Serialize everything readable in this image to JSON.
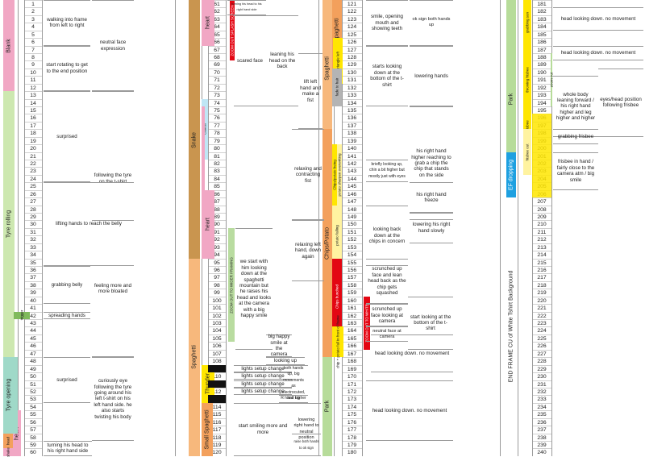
{
  "columns": [
    {
      "id": "c1",
      "start": 1,
      "end": 60
    },
    {
      "id": "c2",
      "start": 61,
      "end": 120
    },
    {
      "id": "c3",
      "start": 121,
      "end": 180
    },
    {
      "id": "c4",
      "start": 181,
      "end": 240
    }
  ],
  "scenes": {
    "blank": "Blank",
    "tyre_rolling": "Tyre rolling",
    "trigger": "trigger",
    "tyre_opening": "Tyre opening",
    "head": "head",
    "shake": "shake",
    "heart_a": "heart",
    "snake": "Snake",
    "heart_b": "heart",
    "cancel": "Cancel",
    "zoom_alt": "ZOOM OUT SPLASH SCREEN",
    "heart_c": "heart",
    "spaghetti": "Spaghetti",
    "zoom_spag": "ZOOM OUT TO WIDER FRAMING",
    "thunder": "Thunder",
    "small_spaghetti": "Small Spaghetti",
    "spaghetti_r": "Spaghetti",
    "small_spaghetti_r": "Small Spaghetti",
    "triangle_left": "triangle left",
    "fade_to_hair": "fade to hair",
    "chips_potato": "Chips/Potato",
    "chips_label_a": "Chips/potato being",
    "potato_label": "potato sharpen overwriting",
    "potato_falling": "potato falling",
    "chips_bunched": "Chips bunched",
    "chip_potato_fall": "chip + potato fall in front of frame",
    "park_c3": "Park",
    "zoom_out_white": "ZOOM OUT TO WHITE",
    "park_c4": "Park",
    "grabbing_sun": "grabbing sun",
    "throwing_frisbee": "throwing frisbee",
    "zoom_out_c4": "zoom out",
    "park_frisbee": "park still frame without frisbee",
    "frisbee_out": "frisbee out",
    "ef_dropping": "EF dropping",
    "end_frame": "END FRAME CU of White Tshirt Background"
  },
  "notes": {
    "c1_a": "walking into frame from left to right",
    "c1_b": "neutral face expression",
    "c1_c": "start rotating to get to the end position",
    "c1_d": "surprised",
    "c1_e": "following the tyre on the t-shirt",
    "c1_f": "lifting hands to reach the belly",
    "c1_g": "grabbing belly",
    "c1_h": "feeling more and more bloated",
    "c1_i": "spreading hands",
    "c1_j": "surprised",
    "c1_k": "curiously eye following the tyre going around his left t-shirt on his left hand side. he also starts twisting his body",
    "c1_l": "turning his head to his right hand side",
    "c2_a": "turning his head to his right hand side",
    "c2_b": "scared face",
    "c2_c": "leaning his head on the back",
    "c2_d": "lift left hand and make a fist",
    "c2_e": "relaxing and contracting fist",
    "c2_f": "we start with him looking down at the spaghetti mountain but he raises his head and looks at the camera with a big happy smile",
    "c2_g": "relaxing left hand, down again",
    "c2_h": "big happy smile at the camera",
    "c2_i": "looking up",
    "c2_j": "lights setup change",
    "c2_k": "lights setup change",
    "c2_l": "both hands up, big movements as electrocuted, hair up",
    "c2_m": "lights setup change",
    "c2_n": "lights setup change",
    "c2_o": "R hand higher",
    "c2_p": "start smiling more and more",
    "c2_q": "lowering right hand to neutral position",
    "c2_r": "raise both hands to ok sign",
    "c3_a": "smile, opening mouth and showing teeth",
    "c3_b": "ok sign both hands up",
    "c3_c": "starts looking down at the bottom of the t-shirt",
    "c3_d": "lowering hands",
    "c3_e": "his right hand higher reaching to grab a chip the chip that stands on the side",
    "c3_f": "briefly looking up, chin a bit higher but mostly just with eyes",
    "c3_g": "his right hand freeze",
    "c3_h": "lowering his right hand slowly",
    "c3_i": "looking back down at the chips in concern",
    "c3_j": "scrunched up face and lean head back as the chip gets squashed",
    "c3_k": "scrunched up face looking at camera",
    "c3_l": "neutral face at camera",
    "c3_m": "start looking at the bottom of the t-shirt",
    "c3_n": "head looking down. no movement",
    "c3_o": "head looking down. no movement",
    "c4_a": "head looking down. no movement",
    "c4_b": "head looking down. no movement",
    "c4_c": "whole body leaning forward / his right hand higher and leg higher and higher",
    "c4_d": "eyes/head position following frisbee",
    "c4_e": "grabbing frisbee",
    "c4_f": "frisbee in hand / fairly close to the camera atm / big smile"
  },
  "colors": {
    "pink": "#f1a7c4",
    "green_light": "#cde8b0",
    "green_mid": "#b9dca0",
    "green_dark": "#7fba5b",
    "teal": "#9fd9c8",
    "brown": "#c9954f",
    "brown_dark": "#b98443",
    "red": "#e30613",
    "orange": "#f3a05c",
    "orange_light": "#f7b87c",
    "yellow": "#ffe600",
    "yellow_light": "#fff3a0",
    "black": "#111111",
    "blue": "#1ea0e0",
    "cyan_light": "#bfe6f5",
    "grey": "#b4b4b4",
    "green_park": "#b7dc9a"
  }
}
